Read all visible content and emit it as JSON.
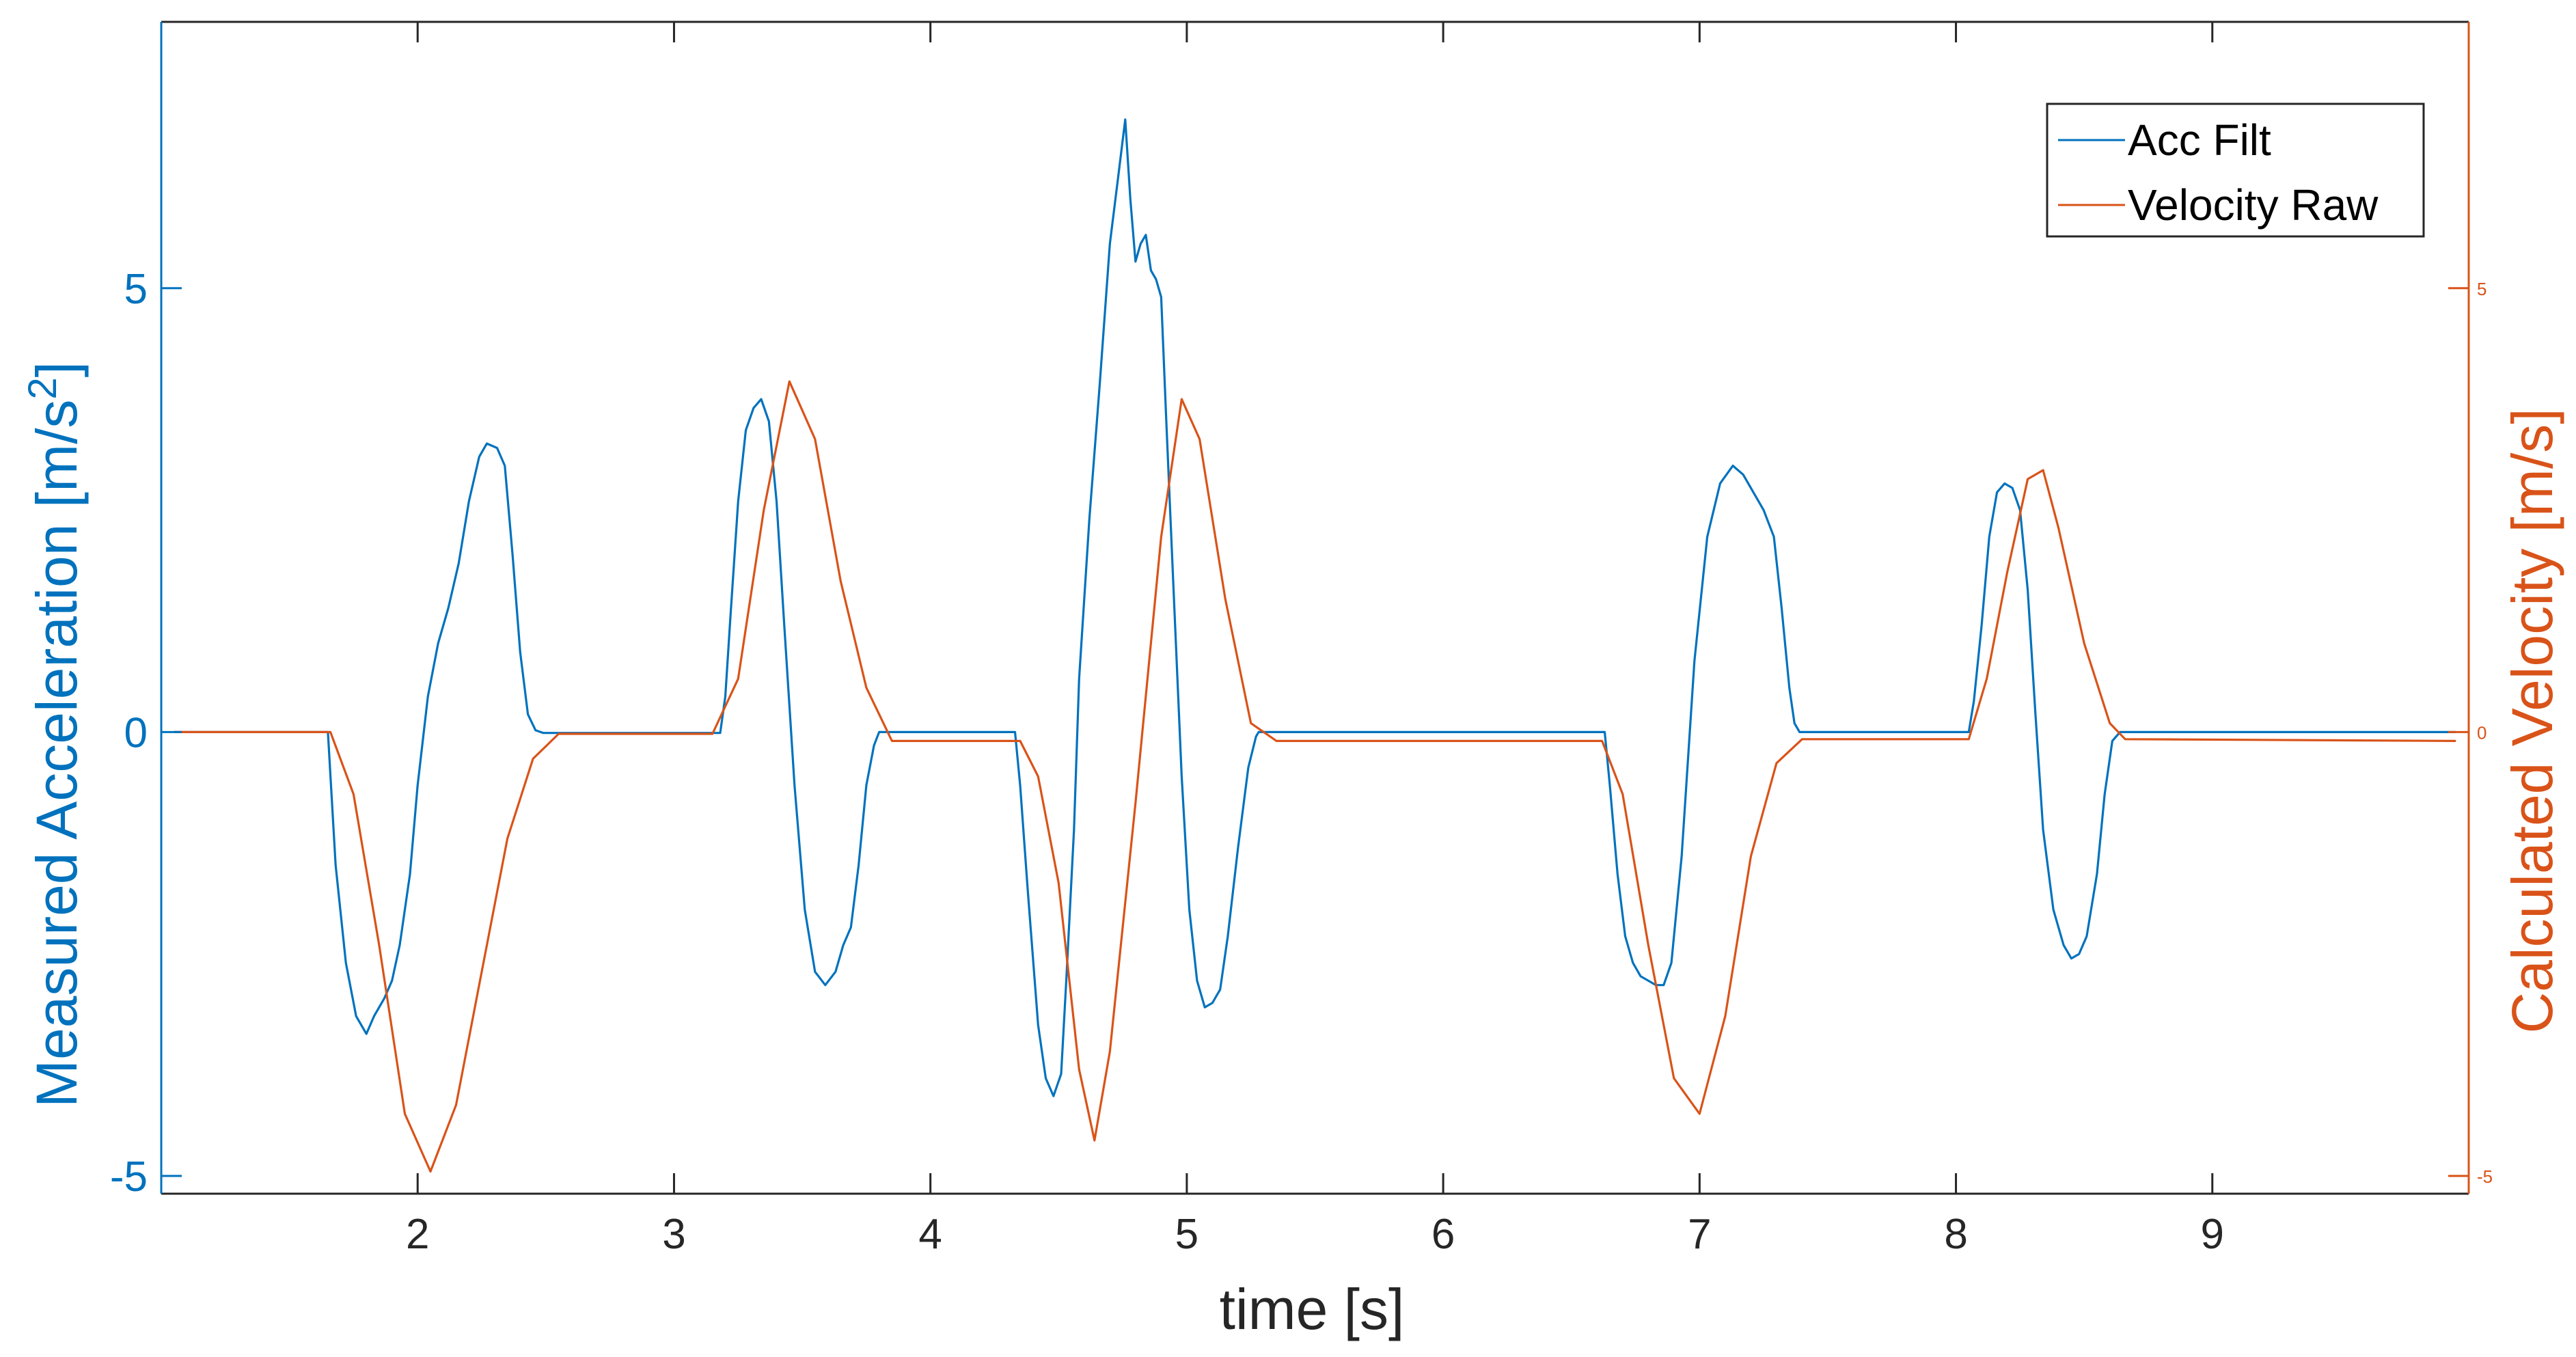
{
  "chart_data": {
    "type": "line",
    "title": "",
    "xlabel": "time [s]",
    "ylabel_left": "Measured Acceleration [m/s^2]",
    "ylabel_left_base": "Measured Acceleration [m/s",
    "ylabel_left_sup": "2",
    "ylabel_left_end": "]",
    "ylabel_right": "Calculated Velocity [m/s]",
    "xlim": [
      1.0,
      10.0
    ],
    "ylim_left": [
      -5.2,
      8.0
    ],
    "ylim_right": [
      -5.2,
      8.0
    ],
    "xticks": [
      2,
      3,
      4,
      5,
      6,
      7,
      8,
      9
    ],
    "xtick_labels": [
      "2",
      "3",
      "4",
      "5",
      "6",
      "7",
      "8",
      "9"
    ],
    "yticks_left": [
      5,
      0,
      -5
    ],
    "ytick_labels_left": [
      "5",
      "0",
      "-5"
    ],
    "yticks_right": [
      5,
      0,
      -5
    ],
    "ytick_labels_right": [
      "5",
      "0",
      "-5"
    ],
    "grid": false,
    "legend_position": "top-right",
    "colors": {
      "left_axis": "#0072BD",
      "right_axis": "#D95319",
      "axes_box": "#262626"
    },
    "series": [
      {
        "name": "Acc Filt",
        "axis": "left",
        "color": "#0072BD",
        "x": [
          1.05,
          1.65,
          1.68,
          1.72,
          1.76,
          1.8,
          1.83,
          1.87,
          1.9,
          1.93,
          1.97,
          2.0,
          2.04,
          2.08,
          2.12,
          2.16,
          2.2,
          2.24,
          2.27,
          2.31,
          2.34,
          2.37,
          2.4,
          2.43,
          2.46,
          2.48,
          2.49,
          3.18,
          3.2,
          3.22,
          3.25,
          3.28,
          3.31,
          3.34,
          3.37,
          3.4,
          3.43,
          3.47,
          3.51,
          3.55,
          3.59,
          3.63,
          3.66,
          3.69,
          3.72,
          3.75,
          3.78,
          3.8,
          3.82,
          4.33,
          4.35,
          4.38,
          4.42,
          4.45,
          4.48,
          4.51,
          4.53,
          4.56,
          4.58,
          4.62,
          4.66,
          4.7,
          4.73,
          4.76,
          4.78,
          4.8,
          4.82,
          4.84,
          4.86,
          4.88,
          4.9,
          4.92,
          4.95,
          4.98,
          5.01,
          5.04,
          5.07,
          5.1,
          5.13,
          5.16,
          5.2,
          5.24,
          5.27,
          5.28,
          6.63,
          6.65,
          6.68,
          6.71,
          6.74,
          6.77,
          6.8,
          6.83,
          6.86,
          6.89,
          6.93,
          6.98,
          7.03,
          7.08,
          7.13,
          7.17,
          7.21,
          7.25,
          7.29,
          7.32,
          7.35,
          7.37,
          7.39,
          8.05,
          8.07,
          8.1,
          8.13,
          8.16,
          8.19,
          8.22,
          8.25,
          8.28,
          8.31,
          8.34,
          8.38,
          8.42,
          8.45,
          8.48,
          8.51,
          8.55,
          8.58,
          8.61,
          8.64,
          8.66,
          9.95
        ],
        "y": [
          0,
          0,
          -1.5,
          -2.6,
          -3.2,
          -3.4,
          -3.2,
          -3.0,
          -2.8,
          -2.4,
          -1.6,
          -0.6,
          0.4,
          1.0,
          1.4,
          1.9,
          2.6,
          3.1,
          3.25,
          3.2,
          3.0,
          2.0,
          0.9,
          0.2,
          0.02,
          0.0,
          -0.01,
          -0.01,
          0.4,
          1.3,
          2.6,
          3.4,
          3.65,
          3.75,
          3.5,
          2.6,
          1.2,
          -0.6,
          -2.0,
          -2.7,
          -2.85,
          -2.7,
          -2.4,
          -2.2,
          -1.5,
          -0.6,
          -0.15,
          0.0,
          0.0,
          0.0,
          -0.6,
          -1.8,
          -3.3,
          -3.9,
          -4.1,
          -3.85,
          -2.8,
          -1.1,
          0.6,
          2.4,
          3.9,
          5.5,
          6.2,
          6.9,
          6.0,
          5.3,
          5.5,
          5.6,
          5.2,
          5.1,
          4.9,
          3.5,
          1.5,
          -0.5,
          -2.0,
          -2.8,
          -3.1,
          -3.05,
          -2.9,
          -2.3,
          -1.3,
          -0.4,
          -0.05,
          0.0,
          0.0,
          -0.6,
          -1.6,
          -2.3,
          -2.6,
          -2.75,
          -2.8,
          -2.85,
          -2.85,
          -2.6,
          -1.4,
          0.8,
          2.2,
          2.8,
          3.0,
          2.9,
          2.7,
          2.5,
          2.2,
          1.4,
          0.5,
          0.1,
          0.0,
          0.0,
          0.35,
          1.2,
          2.2,
          2.7,
          2.8,
          2.75,
          2.5,
          1.6,
          0.2,
          -1.1,
          -2.0,
          -2.4,
          -2.55,
          -2.5,
          -2.3,
          -1.6,
          -0.7,
          -0.1,
          0.0,
          0.0,
          0.0
        ]
      },
      {
        "name": "Velocity Raw",
        "axis": "right",
        "color": "#D95319",
        "x": [
          1.05,
          1.66,
          1.75,
          1.85,
          1.95,
          2.05,
          2.15,
          2.25,
          2.35,
          2.45,
          2.55,
          3.15,
          3.25,
          3.35,
          3.45,
          3.55,
          3.65,
          3.75,
          3.85,
          4.35,
          4.42,
          4.5,
          4.58,
          4.64,
          4.7,
          4.8,
          4.9,
          4.98,
          5.05,
          5.15,
          5.25,
          5.35,
          6.62,
          6.7,
          6.8,
          6.9,
          7.0,
          7.1,
          7.2,
          7.3,
          7.4,
          8.05,
          8.12,
          8.2,
          8.28,
          8.34,
          8.4,
          8.5,
          8.6,
          8.66,
          9.95
        ],
        "y": [
          0,
          0,
          -0.7,
          -2.4,
          -4.3,
          -4.95,
          -4.2,
          -2.7,
          -1.2,
          -0.3,
          -0.02,
          -0.02,
          0.6,
          2.5,
          3.95,
          3.3,
          1.7,
          0.5,
          -0.1,
          -0.1,
          -0.5,
          -1.7,
          -3.8,
          -4.6,
          -3.6,
          -0.8,
          2.2,
          3.75,
          3.3,
          1.5,
          0.1,
          -0.1,
          -0.1,
          -0.7,
          -2.4,
          -3.9,
          -4.3,
          -3.2,
          -1.4,
          -0.35,
          -0.08,
          -0.08,
          0.6,
          1.8,
          2.85,
          2.95,
          2.3,
          1.0,
          0.1,
          -0.08,
          -0.1
        ]
      }
    ]
  }
}
